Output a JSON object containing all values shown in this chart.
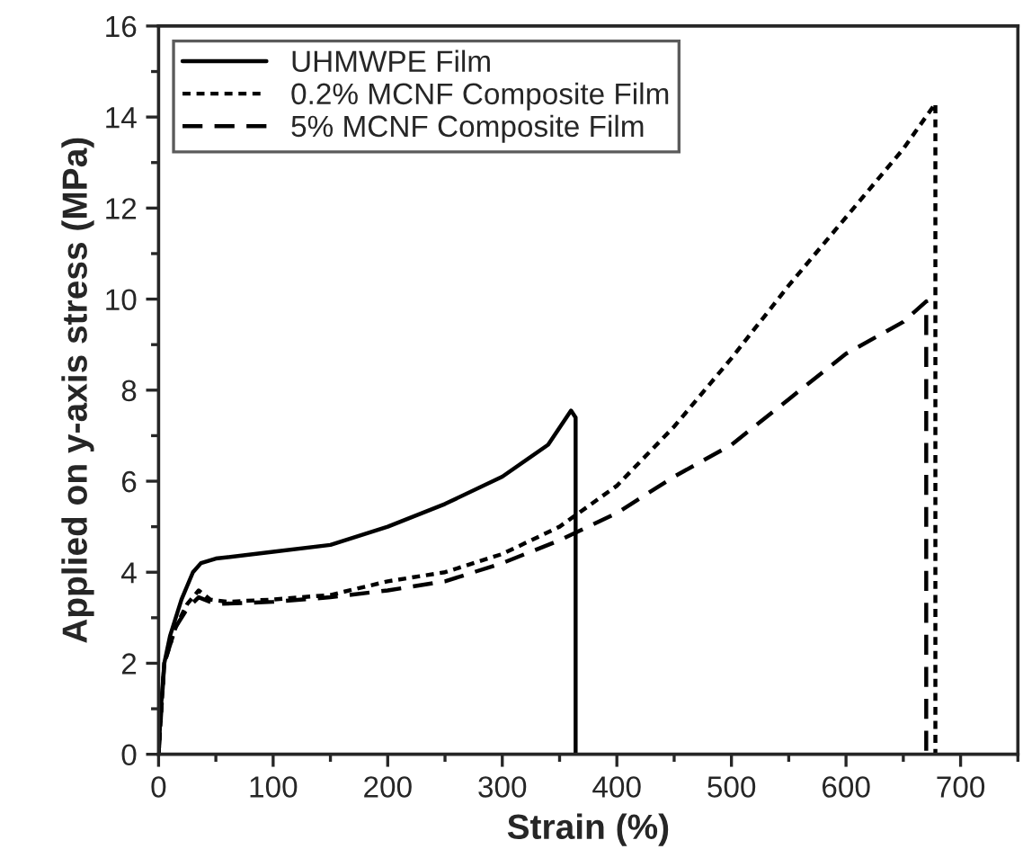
{
  "chart_data": {
    "type": "line",
    "xlabel": "Strain (%)",
    "ylabel": "Applied on y-axis stress (MPa)",
    "xlim": [
      0,
      750
    ],
    "xticks": [
      0,
      100,
      200,
      300,
      400,
      500,
      600,
      700
    ],
    "ylim": [
      0,
      16
    ],
    "yticks": [
      0,
      2,
      4,
      6,
      8,
      10,
      12,
      14,
      16
    ],
    "grid": false,
    "legend": "top left",
    "marker": "none",
    "series": [
      {
        "name": "UHMWPE Film",
        "color": "#000000",
        "line_style": "solid",
        "x": [
          0,
          2,
          5,
          10,
          20,
          30,
          37,
          50,
          100,
          150,
          200,
          250,
          300,
          340,
          360,
          364,
          364
        ],
        "values": [
          0,
          1,
          2,
          2.6,
          3.4,
          4.0,
          4.2,
          4.3,
          4.45,
          4.6,
          5.0,
          5.5,
          6.1,
          6.8,
          7.55,
          7.4,
          0
        ]
      },
      {
        "name": "0.2% MCNF Composite Film",
        "color": "#000000",
        "line_style": "dotted",
        "x": [
          0,
          5,
          15,
          25,
          35,
          45,
          60,
          100,
          150,
          200,
          250,
          300,
          350,
          400,
          450,
          500,
          550,
          600,
          650,
          678,
          678
        ],
        "values": [
          0,
          2,
          2.8,
          3.3,
          3.6,
          3.4,
          3.35,
          3.4,
          3.5,
          3.8,
          4.0,
          4.4,
          5.0,
          5.9,
          7.2,
          8.7,
          10.3,
          11.8,
          13.3,
          14.3,
          0
        ]
      },
      {
        "name": "5% MCNF Composite Film",
        "color": "#000000",
        "line_style": "dashed",
        "x": [
          0,
          5,
          15,
          25,
          35,
          50,
          100,
          150,
          200,
          250,
          300,
          350,
          400,
          450,
          500,
          550,
          600,
          650,
          670,
          670
        ],
        "values": [
          0,
          2,
          2.8,
          3.2,
          3.45,
          3.3,
          3.35,
          3.45,
          3.6,
          3.8,
          4.2,
          4.7,
          5.3,
          6.1,
          6.8,
          7.8,
          8.8,
          9.5,
          9.95,
          0
        ]
      }
    ]
  }
}
